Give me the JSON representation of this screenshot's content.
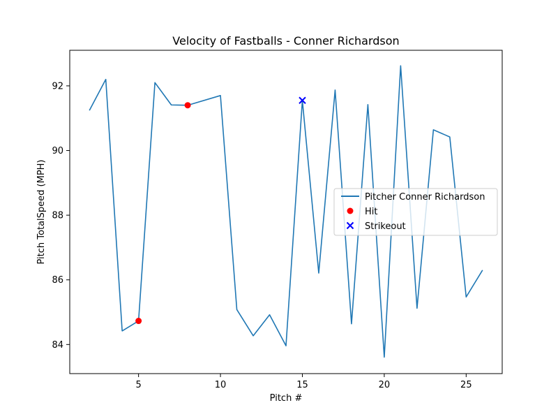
{
  "chart_data": {
    "type": "line",
    "title": "Velocity of Fastballs - Conner Richardson",
    "xlabel": "Pitch #",
    "ylabel": "Pitch TotalSpeed (MPH)",
    "xlim": [
      0.8,
      27.2
    ],
    "ylim": [
      83.1,
      93.1
    ],
    "xticks": [
      5,
      10,
      15,
      20,
      25
    ],
    "yticks": [
      84,
      86,
      88,
      90,
      92
    ],
    "grid": false,
    "legend_position": "center-right",
    "series": [
      {
        "name": "Pitcher Conner Richardson",
        "kind": "line",
        "color": "#1f77b4",
        "x": [
          2,
          3,
          4,
          5,
          6,
          7,
          8,
          10,
          11,
          12,
          13,
          14,
          15,
          16,
          17,
          18,
          19,
          20,
          21,
          22,
          23,
          24,
          25,
          26
        ],
        "y": [
          91.24,
          92.2,
          84.42,
          84.73,
          92.1,
          91.41,
          91.4,
          91.7,
          85.08,
          84.27,
          84.92,
          83.96,
          91.55,
          86.21,
          91.87,
          84.64,
          91.42,
          83.61,
          92.62,
          85.12,
          90.64,
          90.42,
          85.47,
          86.3
        ]
      },
      {
        "name": "Hit",
        "kind": "scatter",
        "marker": "circle",
        "color": "#ff0000",
        "x": [
          5,
          8
        ],
        "y": [
          84.73,
          91.4
        ]
      },
      {
        "name": "Strikeout",
        "kind": "scatter",
        "marker": "x",
        "color": "#0000ff",
        "x": [
          15
        ],
        "y": [
          91.55
        ]
      }
    ]
  }
}
